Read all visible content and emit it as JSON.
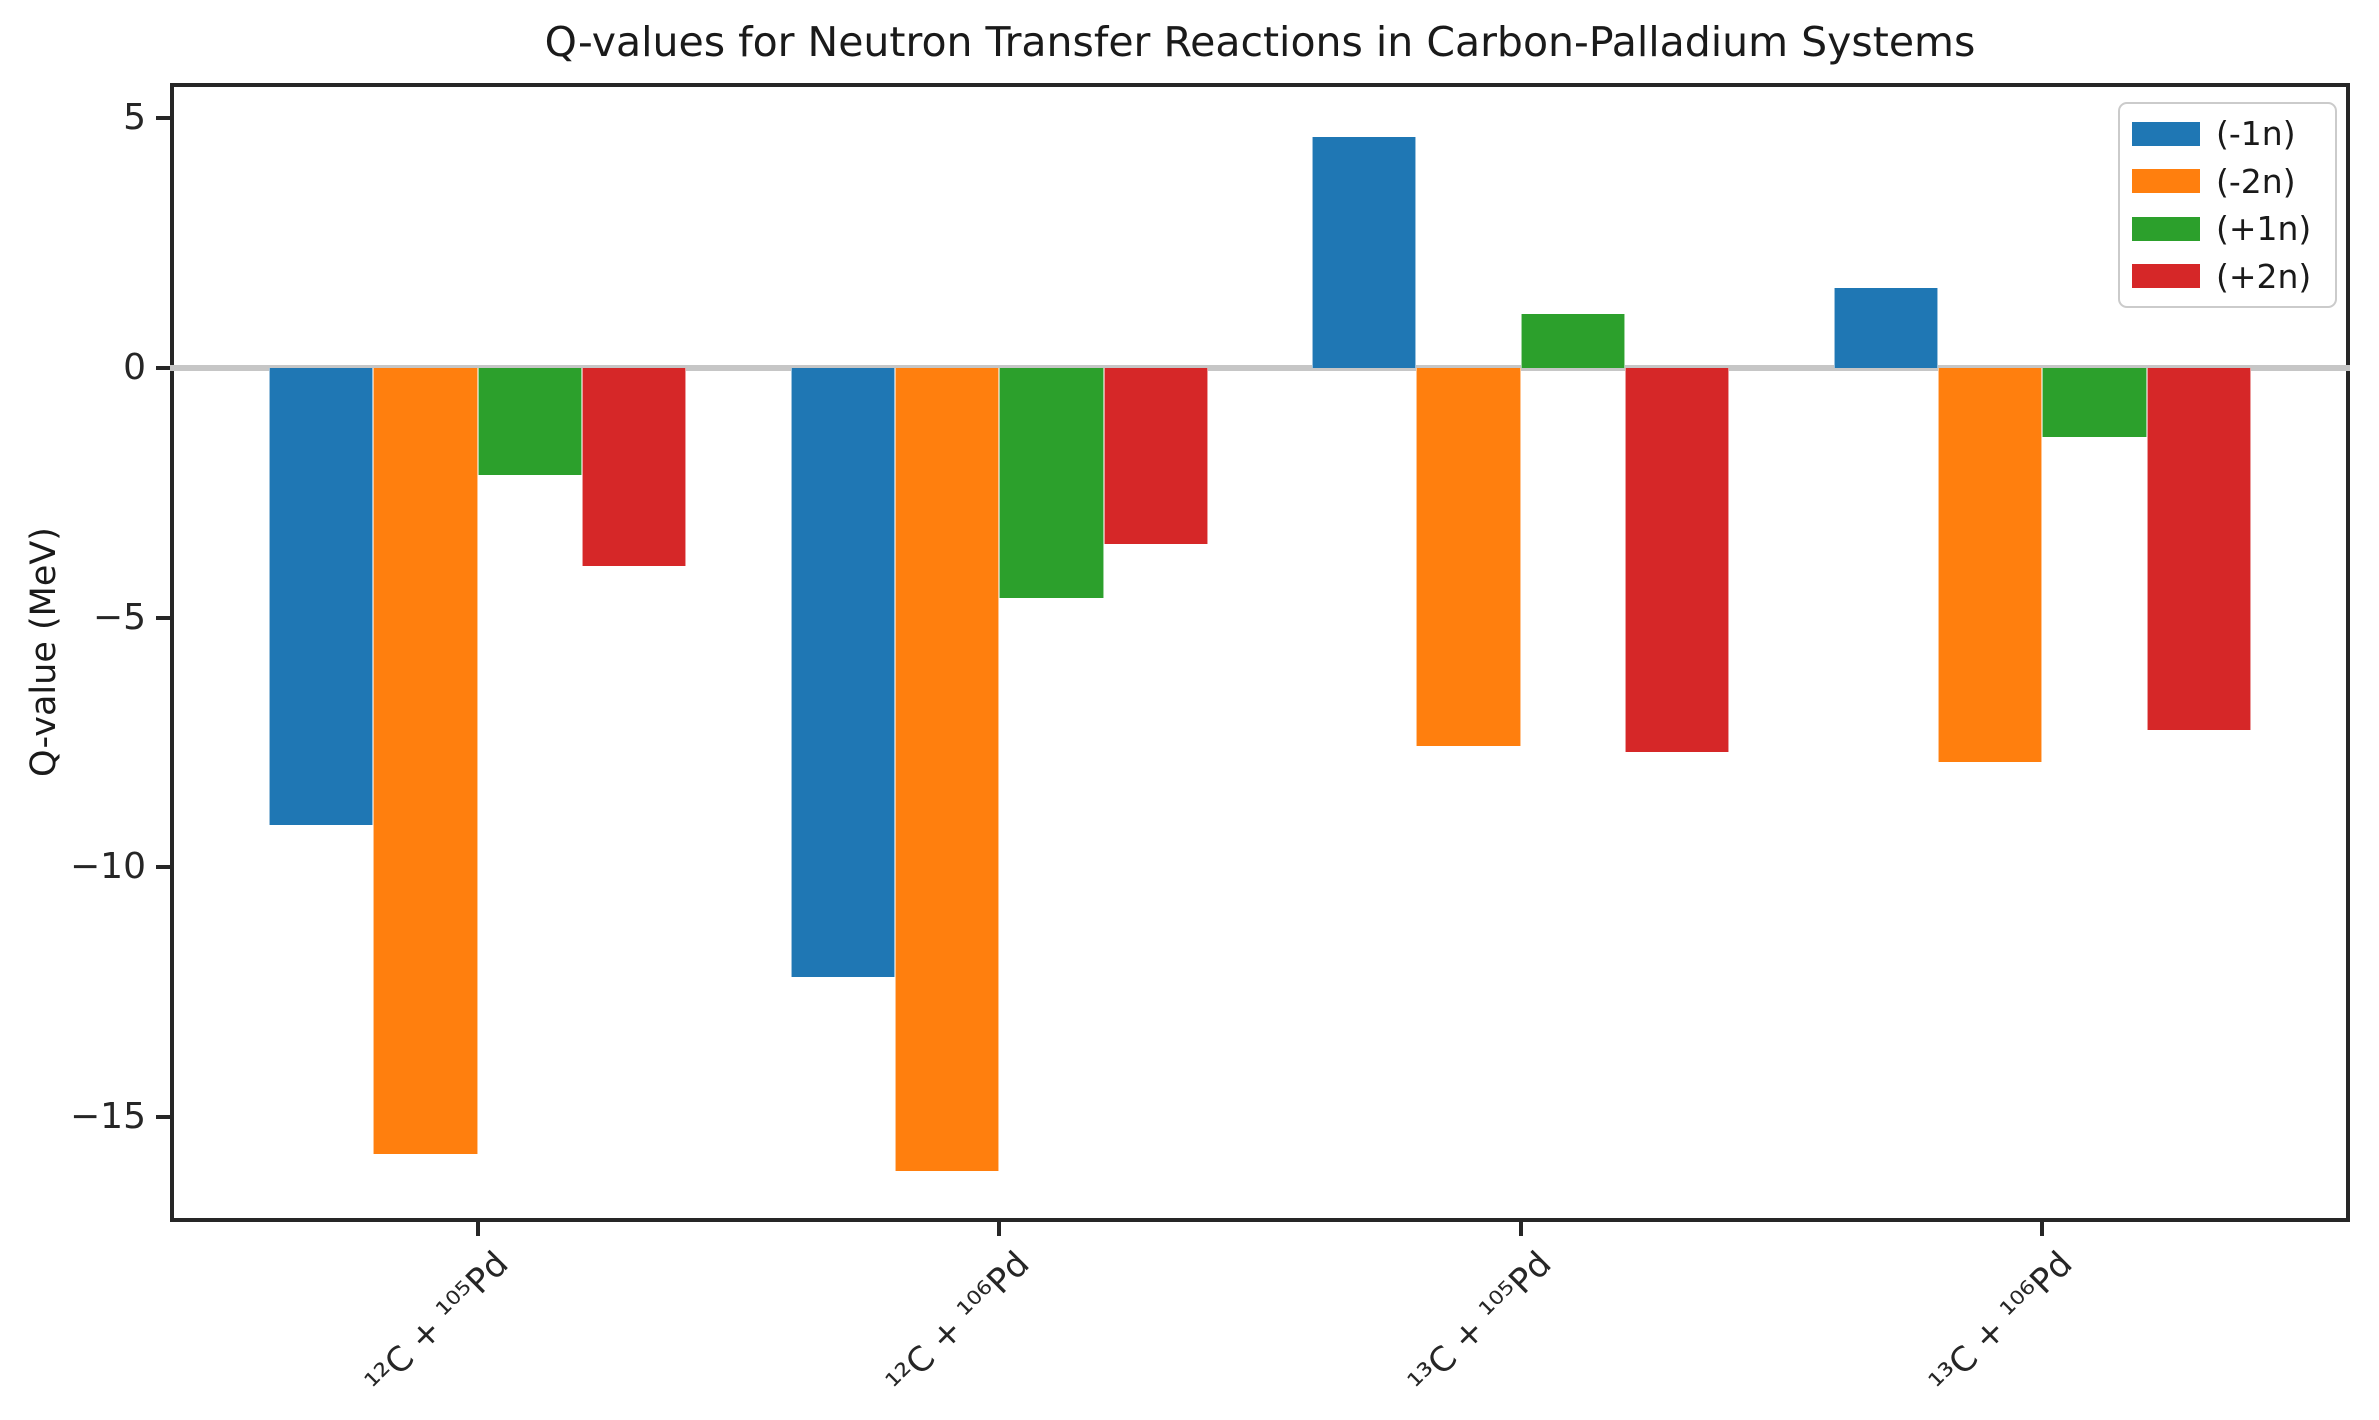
{
  "chart_data": {
    "type": "bar",
    "title": "Q-values for Neutron Transfer Reactions in Carbon-Palladium Systems",
    "xlabel": "",
    "ylabel": "Q-value (MeV)",
    "categories": [
      "¹²C + ¹⁰⁵Pd",
      "¹²C + ¹⁰⁶Pd",
      "¹³C + ¹⁰⁵Pd",
      "¹³C + ¹⁰⁶Pd"
    ],
    "series": [
      {
        "name": "(-1n)",
        "color": "#1f77b4",
        "values": [
          -9.16,
          -12.19,
          4.62,
          1.59
        ]
      },
      {
        "name": "(-2n)",
        "color": "#ff7f0e",
        "values": [
          -15.74,
          -16.08,
          -7.57,
          -7.9
        ]
      },
      {
        "name": "(+1n)",
        "color": "#2ca02c",
        "values": [
          -2.15,
          -4.61,
          1.08,
          -1.38
        ]
      },
      {
        "name": "(+2n)",
        "color": "#d62728",
        "values": [
          -3.97,
          -3.53,
          -7.7,
          -7.26
        ]
      }
    ],
    "yticks": [
      {
        "value": 5,
        "label": "5"
      },
      {
        "value": 0,
        "label": "0"
      },
      {
        "value": -5,
        "label": "−5"
      },
      {
        "value": -10,
        "label": "−10"
      },
      {
        "value": -15,
        "label": "−15"
      }
    ],
    "ylim": [
      -17.1,
      5.7
    ],
    "xlim": [
      -0.59,
      3.59
    ],
    "bar_width": 0.2,
    "group_offsets": [
      -0.3,
      -0.1,
      0.1,
      0.3
    ],
    "grid": false,
    "legend_position": "upper right",
    "zero_line_color": "#c6c6c6",
    "axis_color": "#262626"
  }
}
